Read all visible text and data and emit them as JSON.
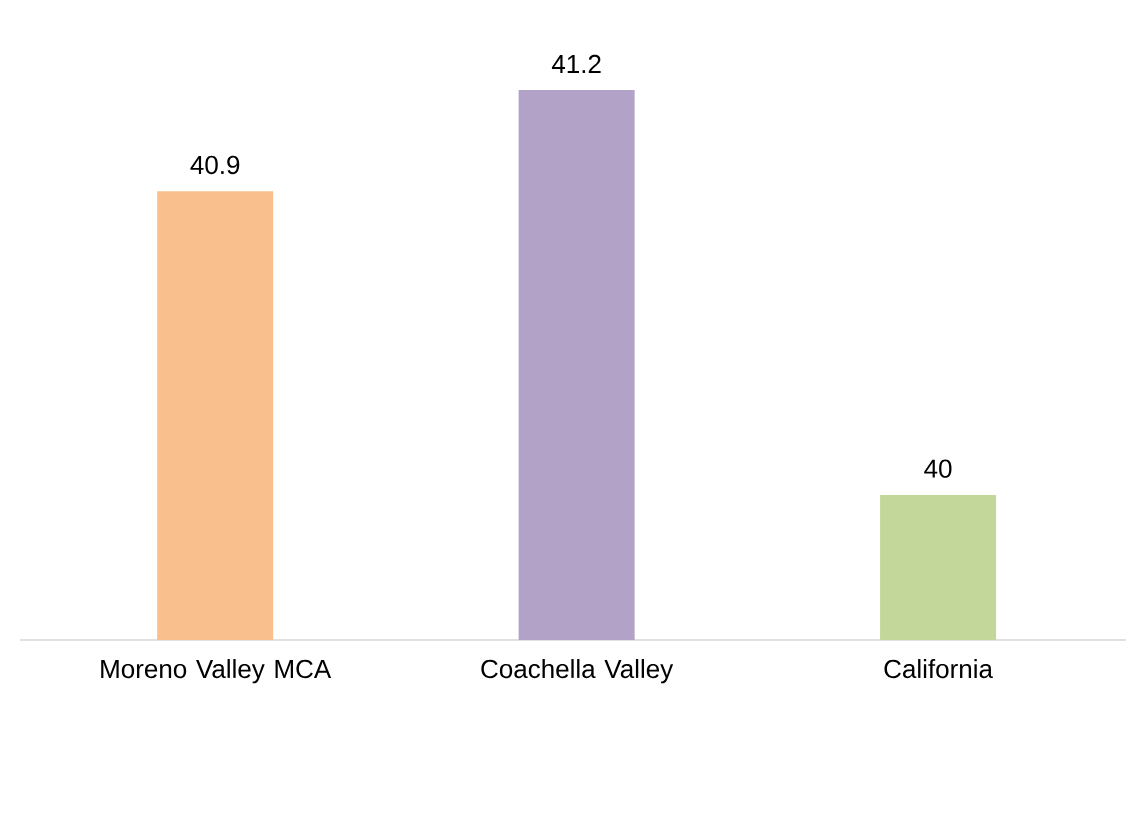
{
  "chart_data": {
    "type": "bar",
    "categories": [
      "Moreno Valley MCA",
      "Coachella Valley",
      "California"
    ],
    "values": [
      40.9,
      41.2,
      40
    ],
    "colors": [
      "#f9c08e",
      "#b3a2c7",
      "#c4d79b"
    ],
    "ylim": [
      39.57,
      41.2
    ],
    "data_labels": true
  }
}
